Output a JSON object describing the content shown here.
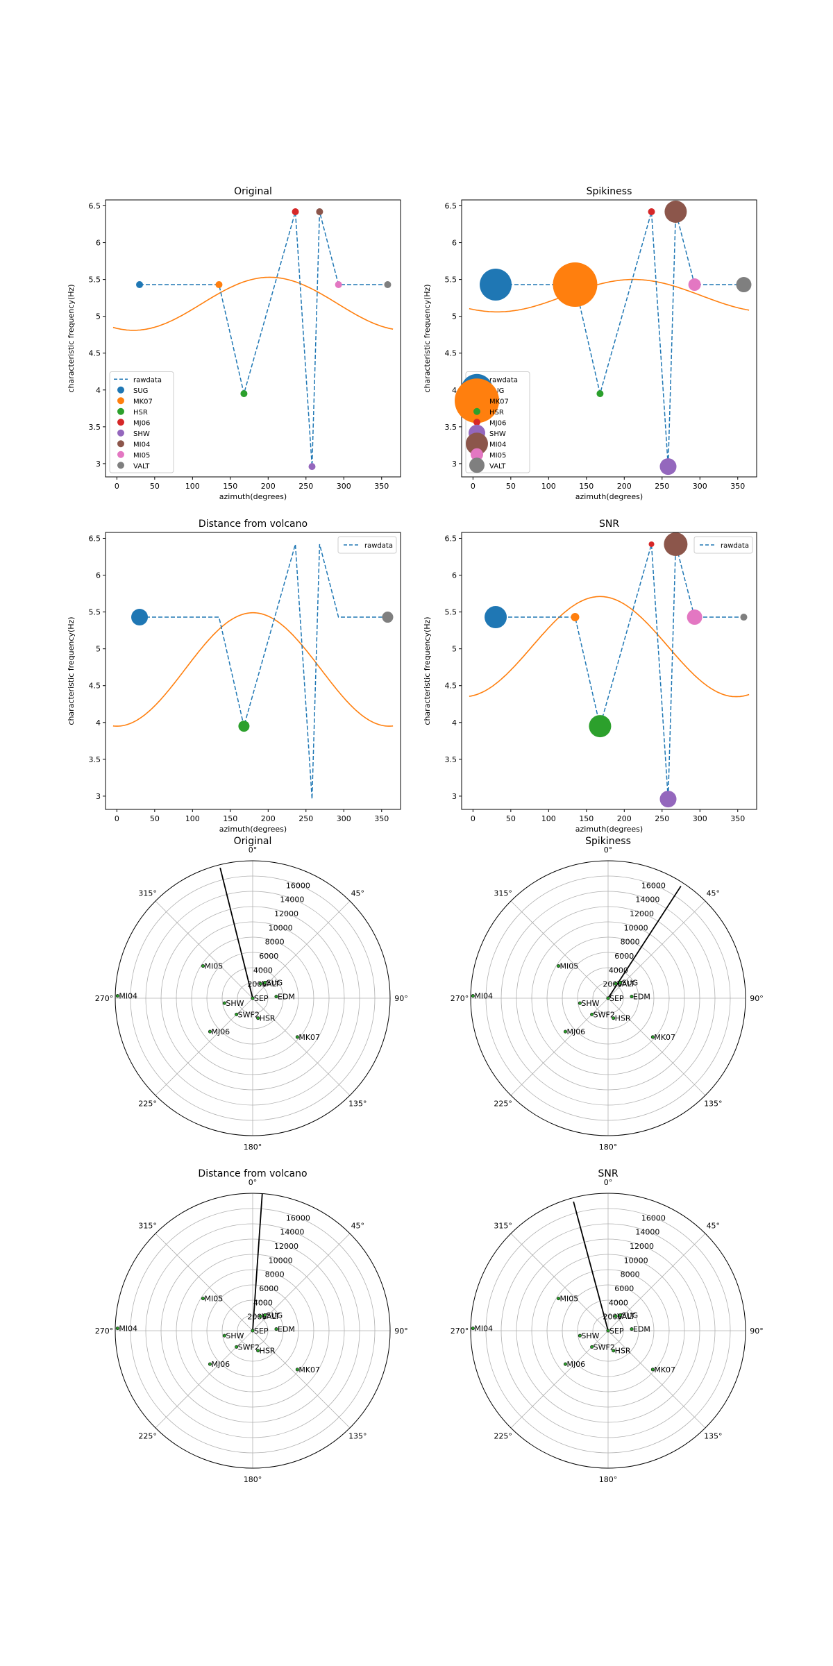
{
  "chart_data": [
    {
      "type": "scatter",
      "id": "original",
      "title": "Original",
      "xlabel": "azimuth(degrees)",
      "ylabel": "characteristic frequency(Hz)",
      "xlim": [
        -15,
        375
      ],
      "ylim": [
        2.82,
        6.58
      ],
      "xticks": [
        0,
        50,
        100,
        150,
        200,
        250,
        300,
        350
      ],
      "yticks": [
        3.0,
        3.5,
        4.0,
        4.5,
        5.0,
        5.5,
        6.0,
        6.5
      ],
      "legend": "lower-left",
      "show_station_legend": true,
      "rawdata_label": "rawdata",
      "rawdata": {
        "x": [
          30,
          135,
          168,
          236,
          258,
          268,
          293,
          358
        ],
        "y": [
          5.43,
          5.43,
          3.95,
          6.42,
          2.96,
          6.42,
          5.43,
          5.43
        ]
      },
      "points": [
        {
          "name": "SUG",
          "x": 30,
          "y": 5.43,
          "size": 5
        },
        {
          "name": "MK07",
          "x": 135,
          "y": 5.43,
          "size": 5
        },
        {
          "name": "HSR",
          "x": 168,
          "y": 3.95,
          "size": 5
        },
        {
          "name": "MJ06",
          "x": 236,
          "y": 6.42,
          "size": 5
        },
        {
          "name": "SHW",
          "x": 258,
          "y": 2.96,
          "size": 5
        },
        {
          "name": "MI04",
          "x": 268,
          "y": 6.42,
          "size": 5
        },
        {
          "name": "MI05",
          "x": 293,
          "y": 5.43,
          "size": 5
        },
        {
          "name": "VALT",
          "x": 358,
          "y": 5.43,
          "size": 5
        }
      ],
      "fit": {
        "mean": 5.17,
        "amp": 0.36,
        "phase": 202
      }
    },
    {
      "type": "scatter",
      "id": "spikiness",
      "title": "Spikiness",
      "xlabel": "azimuth(degrees)",
      "ylabel": "characteristic frequency(Hz)",
      "xlim": [
        -15,
        375
      ],
      "ylim": [
        2.82,
        6.58
      ],
      "xticks": [
        0,
        50,
        100,
        150,
        200,
        250,
        300,
        350
      ],
      "yticks": [
        3.0,
        3.5,
        4.0,
        4.5,
        5.0,
        5.5,
        6.0,
        6.5
      ],
      "legend": "lower-left",
      "show_station_legend": true,
      "rawdata_label": "rawdata",
      "rawdata": {
        "x": [
          30,
          135,
          168,
          236,
          258,
          268,
          293,
          358
        ],
        "y": [
          5.43,
          5.43,
          3.95,
          6.42,
          2.96,
          6.42,
          5.43,
          5.43
        ]
      },
      "points": [
        {
          "name": "SUG",
          "x": 30,
          "y": 5.43,
          "size": 23
        },
        {
          "name": "MK07",
          "x": 135,
          "y": 5.43,
          "size": 32
        },
        {
          "name": "HSR",
          "x": 168,
          "y": 3.95,
          "size": 5
        },
        {
          "name": "MJ06",
          "x": 236,
          "y": 6.42,
          "size": 5
        },
        {
          "name": "SHW",
          "x": 258,
          "y": 2.96,
          "size": 12
        },
        {
          "name": "MI04",
          "x": 268,
          "y": 6.42,
          "size": 16
        },
        {
          "name": "MI05",
          "x": 293,
          "y": 5.43,
          "size": 9
        },
        {
          "name": "VALT",
          "x": 358,
          "y": 5.43,
          "size": 11
        }
      ],
      "fit": {
        "mean": 5.28,
        "amp": 0.22,
        "phase": 212
      }
    },
    {
      "type": "scatter",
      "id": "distance",
      "title": "Distance from volcano",
      "xlabel": "azimuth(degrees)",
      "ylabel": "characteristic frequency(Hz)",
      "xlim": [
        -15,
        375
      ],
      "ylim": [
        2.82,
        6.58
      ],
      "xticks": [
        0,
        50,
        100,
        150,
        200,
        250,
        300,
        350
      ],
      "yticks": [
        3.0,
        3.5,
        4.0,
        4.5,
        5.0,
        5.5,
        6.0,
        6.5
      ],
      "legend": "upper-right",
      "show_station_legend": false,
      "rawdata_label": "rawdata",
      "rawdata": {
        "x": [
          30,
          135,
          168,
          236,
          258,
          268,
          293,
          358
        ],
        "y": [
          5.43,
          5.43,
          3.95,
          6.42,
          2.96,
          6.42,
          5.43,
          5.43
        ]
      },
      "points": [
        {
          "name": "SUG",
          "x": 30,
          "y": 5.43,
          "size": 12
        },
        {
          "name": "HSR",
          "x": 168,
          "y": 3.95,
          "size": 8
        },
        {
          "name": "VALT",
          "x": 358,
          "y": 5.43,
          "size": 8
        }
      ],
      "fit": {
        "mean": 4.72,
        "amp": 0.77,
        "phase": 180
      }
    },
    {
      "type": "scatter",
      "id": "snr",
      "title": "SNR",
      "xlabel": "azimuth(degrees)",
      "ylabel": "characteristic frequency(Hz)",
      "xlim": [
        -15,
        375
      ],
      "ylim": [
        2.82,
        6.58
      ],
      "xticks": [
        0,
        50,
        100,
        150,
        200,
        250,
        300,
        350
      ],
      "yticks": [
        3.0,
        3.5,
        4.0,
        4.5,
        5.0,
        5.5,
        6.0,
        6.5
      ],
      "legend": "upper-right",
      "show_station_legend": false,
      "rawdata_label": "rawdata",
      "rawdata": {
        "x": [
          30,
          135,
          168,
          236,
          258,
          268,
          293,
          358
        ],
        "y": [
          5.43,
          5.43,
          3.95,
          6.42,
          2.96,
          6.42,
          5.43,
          5.43
        ]
      },
      "points": [
        {
          "name": "SUG",
          "x": 30,
          "y": 5.43,
          "size": 16
        },
        {
          "name": "MK07",
          "x": 135,
          "y": 5.43,
          "size": 6
        },
        {
          "name": "HSR",
          "x": 168,
          "y": 3.95,
          "size": 16
        },
        {
          "name": "MJ06",
          "x": 236,
          "y": 6.42,
          "size": 4
        },
        {
          "name": "SHW",
          "x": 258,
          "y": 2.96,
          "size": 12
        },
        {
          "name": "MI04",
          "x": 268,
          "y": 6.42,
          "size": 17
        },
        {
          "name": "MI05",
          "x": 293,
          "y": 5.43,
          "size": 11
        },
        {
          "name": "VALT",
          "x": 358,
          "y": 5.43,
          "size": 5
        }
      ],
      "fit": {
        "mean": 5.03,
        "amp": 0.68,
        "phase": 168
      }
    },
    {
      "type": "polar",
      "id": "polar-original",
      "title": "Original",
      "rmax": 18000,
      "rticks": [
        2000,
        4000,
        6000,
        8000,
        10000,
        12000,
        14000,
        16000
      ],
      "angle_ticks": [
        "0°",
        "45°",
        "90°",
        "135°",
        "180°",
        "225°",
        "270°",
        "315°"
      ],
      "arrow": {
        "theta": 346,
        "r": 17600
      }
    },
    {
      "type": "polar",
      "id": "polar-spikiness",
      "title": "Spikiness",
      "rmax": 18000,
      "rticks": [
        2000,
        4000,
        6000,
        8000,
        10000,
        12000,
        14000,
        16000
      ],
      "angle_ticks": [
        "0°",
        "45°",
        "90°",
        "135°",
        "180°",
        "225°",
        "270°",
        "315°"
      ],
      "arrow": {
        "theta": 33,
        "r": 17500
      }
    },
    {
      "type": "polar",
      "id": "polar-distance",
      "title": "Distance from volcano",
      "rmax": 18000,
      "rticks": [
        2000,
        4000,
        6000,
        8000,
        10000,
        12000,
        14000,
        16000
      ],
      "angle_ticks": [
        "0°",
        "45°",
        "90°",
        "135°",
        "180°",
        "225°",
        "270°",
        "315°"
      ],
      "arrow": {
        "theta": 4,
        "r": 18000
      }
    },
    {
      "type": "polar",
      "id": "polar-snr",
      "title": "SNR",
      "rmax": 18000,
      "rticks": [
        2000,
        4000,
        6000,
        8000,
        10000,
        12000,
        14000,
        16000
      ],
      "angle_ticks": [
        "0°",
        "45°",
        "90°",
        "135°",
        "180°",
        "225°",
        "270°",
        "315°"
      ],
      "arrow": {
        "theta": 345,
        "r": 17500
      }
    }
  ],
  "stations": [
    {
      "name": "MI05",
      "theta": 303,
      "r": 7750
    },
    {
      "name": "MI04",
      "theta": 271,
      "r": 17700
    },
    {
      "name": "SHW",
      "theta": 260,
      "r": 3750
    },
    {
      "name": "SWF2",
      "theta": 225,
      "r": 3000
    },
    {
      "name": "MJ06",
      "theta": 232,
      "r": 7100
    },
    {
      "name": "HSR",
      "theta": 165,
      "r": 2700
    },
    {
      "name": "MK07",
      "theta": 131,
      "r": 7750
    },
    {
      "name": "EDM",
      "theta": 86,
      "r": 3100
    },
    {
      "name": "SEP",
      "theta": 0,
      "r": 0
    },
    {
      "name": "VALT",
      "theta": 28,
      "r": 2150
    },
    {
      "name": "SUG",
      "theta": 38,
      "r": 2600
    }
  ],
  "colors": {
    "rawdata": "#1f77b4",
    "fit": "#ff7f0e",
    "station_dot": "#2ca02c",
    "SUG": "#1f77b4",
    "MK07": "#ff7f0e",
    "HSR": "#2ca02c",
    "MJ06": "#d62728",
    "SHW": "#9467bd",
    "MI04": "#8c564b",
    "MI05": "#e377c2",
    "VALT": "#7f7f7f"
  }
}
